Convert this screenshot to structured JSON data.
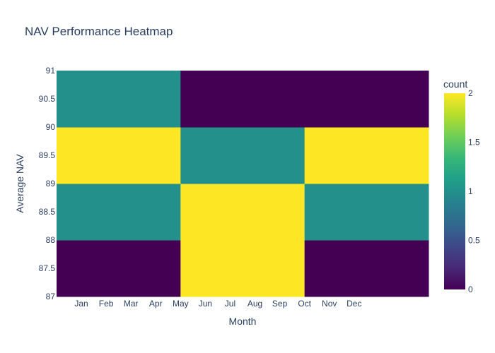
{
  "chart_data": {
    "type": "heatmap",
    "title": "NAV Performance Heatmap",
    "xlabel": "Month",
    "ylabel": "Average NAV",
    "x_categories": [
      "Jan",
      "Feb",
      "Mar",
      "Apr",
      "May",
      "Jun",
      "Jul",
      "Aug",
      "Sep",
      "Oct",
      "Nov",
      "Dec"
    ],
    "x_bins": [
      {
        "from": 0,
        "to": 5
      },
      {
        "from": 5,
        "to": 10
      },
      {
        "from": 10,
        "to": 15
      }
    ],
    "y_bins": [
      {
        "from": 87,
        "to": 88
      },
      {
        "from": 88,
        "to": 89
      },
      {
        "from": 89,
        "to": 90
      },
      {
        "from": 90,
        "to": 91
      }
    ],
    "z": [
      [
        0,
        2,
        0
      ],
      [
        1,
        2,
        1
      ],
      [
        2,
        1,
        2
      ],
      [
        1,
        0,
        0
      ]
    ],
    "ylim": [
      87,
      91
    ],
    "y_ticks": [
      "87",
      "87.5",
      "88",
      "88.5",
      "89",
      "89.5",
      "90",
      "90.5",
      "91"
    ],
    "colorbar": {
      "title": "count",
      "range": [
        0,
        2
      ],
      "ticks": [
        "0",
        "0.5",
        "1",
        "1.5",
        "2"
      ],
      "colorscale": "Viridis"
    }
  }
}
